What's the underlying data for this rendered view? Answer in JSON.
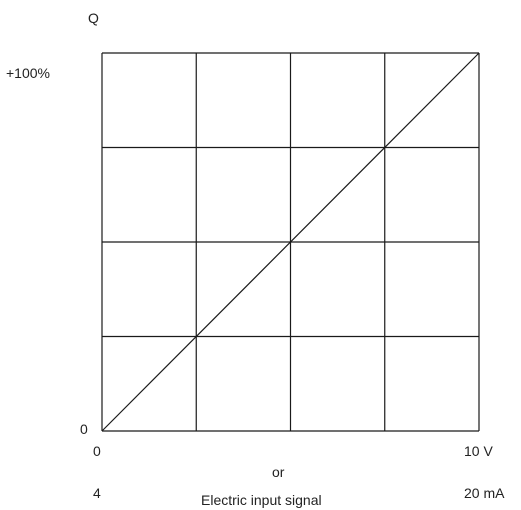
{
  "chart_data": {
    "type": "line",
    "title": "",
    "y_axis_symbol": "Q",
    "xlabel": "Electric input signal",
    "xlabel_connector": "or",
    "x_ticks_voltage": [
      "0",
      "10 V"
    ],
    "x_ticks_current": [
      "4",
      "20 mA"
    ],
    "y_ticks": [
      "0",
      "+100%"
    ],
    "xlim": [
      0,
      10
    ],
    "ylim": [
      0,
      100
    ],
    "grid": true,
    "grid_divisions": 4,
    "series": [
      {
        "x": [
          0,
          10
        ],
        "y": [
          0,
          100
        ]
      }
    ],
    "colors": {
      "line": "#1a1a1a",
      "grid": "#1a1a1a",
      "text": "#222222"
    }
  }
}
